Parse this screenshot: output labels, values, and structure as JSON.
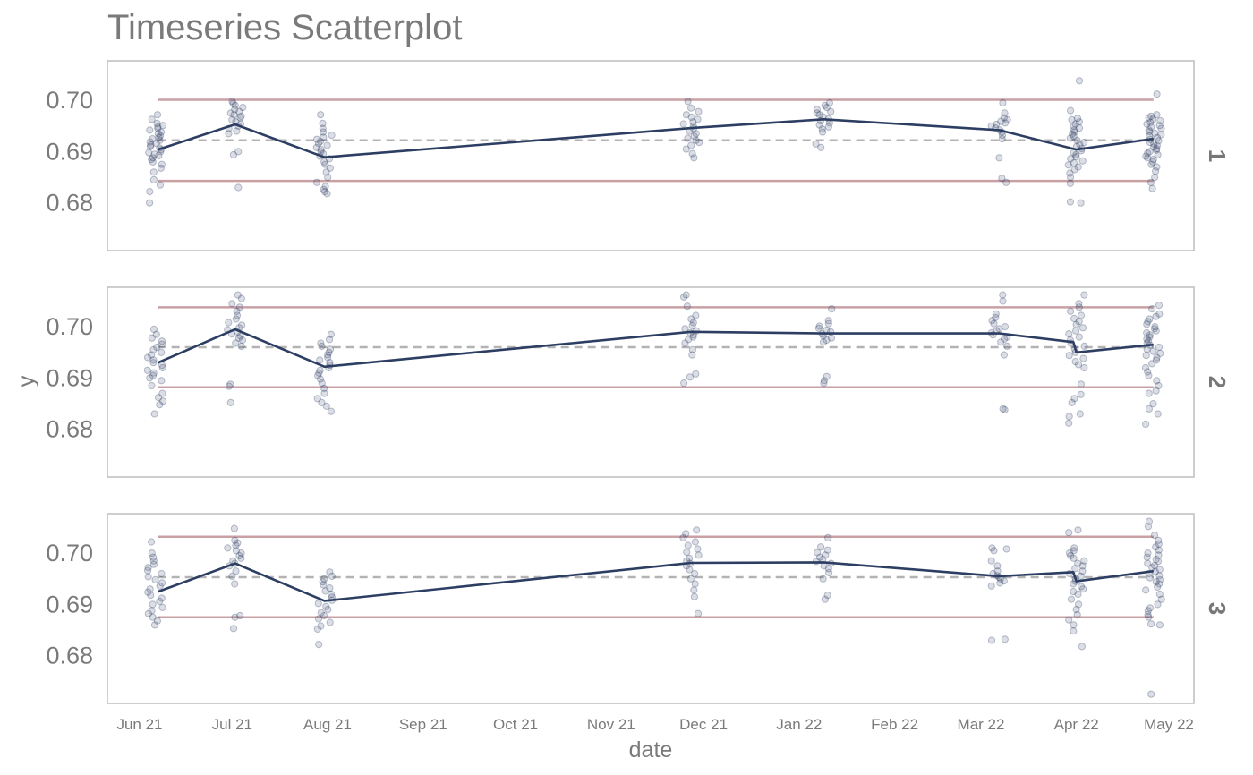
{
  "chart_data": {
    "type": "scatter",
    "title": "Timeseries Scatterplot",
    "xlabel": "date",
    "ylabel": "y",
    "x_tick_labels": [
      "Jun 21",
      "Jul 21",
      "Aug 21",
      "Sep 21",
      "Oct 21",
      "Nov 21",
      "Dec 21",
      "Jan 22",
      "Feb 22",
      "Mar 22",
      "Apr 22",
      "May 22"
    ],
    "x_tick_dates": [
      "2021-06-01",
      "2021-07-01",
      "2021-08-01",
      "2021-09-01",
      "2021-10-01",
      "2021-11-01",
      "2021-12-01",
      "2022-01-01",
      "2022-02-01",
      "2022-03-01",
      "2022-04-01",
      "2022-05-01"
    ],
    "x_range": [
      "2021-06-01",
      "2022-05-01"
    ],
    "y_tick_labels": [
      "0.70",
      "0.69",
      "0.68"
    ],
    "y_tick_values": [
      0.7,
      0.69,
      0.68
    ],
    "ylim": [
      0.6707,
      0.7077
    ],
    "grid": false,
    "colors": {
      "points": "#2d3e63",
      "mean_line": "#2d3e63",
      "limits": "#c9a0a4",
      "center": "#b3b3b3",
      "frame": "#bdbdbd",
      "text": "#7a7a7a"
    },
    "panels": [
      {
        "label": "1",
        "center": 0.6922,
        "upper_limit": 0.7001,
        "lower_limit": 0.6843,
        "span": [
          "2021-06-07",
          "2022-04-26"
        ],
        "mean_line": {
          "dates": [
            "2021-06-07",
            "2021-07-02",
            "2021-07-31",
            "2021-11-27",
            "2022-01-09",
            "2022-03-07",
            "2022-04-01",
            "2022-04-26"
          ],
          "values": [
            0.6904,
            0.6953,
            0.6889,
            0.6946,
            0.6963,
            0.6942,
            0.6904,
            0.6925
          ]
        },
        "clusters": [
          {
            "date": "2021-06-06",
            "values": [
              0.6972,
              0.6963,
              0.6955,
              0.6951,
              0.6948,
              0.6945,
              0.6942,
              0.6938,
              0.6935,
              0.6931,
              0.6928,
              0.6925,
              0.6922,
              0.6919,
              0.6916,
              0.6913,
              0.691,
              0.6907,
              0.6904,
              0.69,
              0.6898,
              0.6895,
              0.6892,
              0.6888,
              0.6885,
              0.688,
              0.6875,
              0.6868,
              0.686,
              0.6845,
              0.6835,
              0.6822,
              0.68
            ]
          },
          {
            "date": "2021-07-02",
            "values": [
              0.6998,
              0.6994,
              0.699,
              0.6986,
              0.6982,
              0.6978,
              0.6975,
              0.6972,
              0.6969,
              0.6966,
              0.6962,
              0.6958,
              0.6954,
              0.695,
              0.6945,
              0.694,
              0.6935,
              0.69,
              0.6894,
              0.683
            ]
          },
          {
            "date": "2021-07-31",
            "values": [
              0.6972,
              0.6955,
              0.6945,
              0.6938,
              0.6932,
              0.6928,
              0.6924,
              0.692,
              0.6916,
              0.6912,
              0.6908,
              0.6904,
              0.69,
              0.6896,
              0.6891,
              0.6886,
              0.688,
              0.6875,
              0.6868,
              0.686,
              0.685,
              0.684,
              0.6832,
              0.6826,
              0.6822,
              0.6818
            ]
          },
          {
            "date": "2021-11-27",
            "values": [
              0.6998,
              0.6985,
              0.6978,
              0.6972,
              0.6967,
              0.6963,
              0.6958,
              0.6954,
              0.695,
              0.6945,
              0.694,
              0.6935,
              0.693,
              0.6926,
              0.6922,
              0.6918,
              0.6912,
              0.6905,
              0.6896,
              0.6888
            ]
          },
          {
            "date": "2022-01-09",
            "values": [
              0.6995,
              0.699,
              0.6986,
              0.6982,
              0.6978,
              0.6975,
              0.6972,
              0.6968,
              0.6964,
              0.696,
              0.6956,
              0.6952,
              0.6948,
              0.6944,
              0.6938,
              0.6915,
              0.6908
            ]
          },
          {
            "date": "2022-03-07",
            "values": [
              0.6995,
              0.6975,
              0.6966,
              0.6962,
              0.6959,
              0.6956,
              0.6953,
              0.695,
              0.6946,
              0.6942,
              0.6938,
              0.6932,
              0.6925,
              0.6888,
              0.6848,
              0.684
            ]
          },
          {
            "date": "2022-04-01",
            "values": [
              0.7038,
              0.698,
              0.6965,
              0.6962,
              0.6958,
              0.6954,
              0.695,
              0.6946,
              0.6942,
              0.6938,
              0.6934,
              0.693,
              0.6926,
              0.6922,
              0.6918,
              0.6914,
              0.691,
              0.6906,
              0.6902,
              0.6898,
              0.6894,
              0.689,
              0.6886,
              0.6882,
              0.6878,
              0.6874,
              0.687,
              0.6865,
              0.6858,
              0.685,
              0.6838,
              0.6802,
              0.68
            ]
          },
          {
            "date": "2022-04-26",
            "values": [
              0.7012,
              0.6972,
              0.6969,
              0.6966,
              0.6963,
              0.696,
              0.6957,
              0.6954,
              0.6951,
              0.6948,
              0.6945,
              0.6942,
              0.6939,
              0.6936,
              0.6933,
              0.693,
              0.6927,
              0.6924,
              0.6921,
              0.6918,
              0.6915,
              0.6912,
              0.6909,
              0.6906,
              0.6903,
              0.69,
              0.6897,
              0.6894,
              0.6891,
              0.6888,
              0.6885,
              0.688,
              0.6875,
              0.687,
              0.6862,
              0.685,
              0.684,
              0.6828
            ]
          }
        ]
      },
      {
        "label": "2",
        "center": 0.696,
        "upper_limit": 0.7038,
        "lower_limit": 0.6882,
        "span": [
          "2021-06-07",
          "2022-04-26"
        ],
        "mean_line": {
          "dates": [
            "2021-06-07",
            "2021-07-02",
            "2021-07-31",
            "2021-11-27",
            "2022-01-09",
            "2022-03-07",
            "2022-03-31",
            "2022-04-01",
            "2022-04-26"
          ],
          "values": [
            0.693,
            0.6995,
            0.6922,
            0.699,
            0.6987,
            0.6987,
            0.697,
            0.695,
            0.6965
          ]
        },
        "clusters": [
          {
            "date": "2021-06-06",
            "values": [
              0.6995,
              0.6985,
              0.6978,
              0.6972,
              0.6966,
              0.696,
              0.6955,
              0.695,
              0.6945,
              0.694,
              0.6935,
              0.693,
              0.6925,
              0.692,
              0.6915,
              0.691,
              0.6905,
              0.69,
              0.6895,
              0.6885,
              0.687,
              0.6862,
              0.6855,
              0.6848,
              0.683
            ]
          },
          {
            "date": "2021-07-02",
            "values": [
              0.7062,
              0.7055,
              0.7045,
              0.7038,
              0.703,
              0.7022,
              0.7015,
              0.7008,
              0.7003,
              0.6998,
              0.6994,
              0.699,
              0.6986,
              0.6982,
              0.6978,
              0.6974,
              0.6968,
              0.6962,
              0.6888,
              0.6884,
              0.6852
            ]
          },
          {
            "date": "2021-07-31",
            "values": [
              0.6985,
              0.6975,
              0.6968,
              0.6962,
              0.6956,
              0.695,
              0.6945,
              0.694,
              0.6935,
              0.693,
              0.6925,
              0.692,
              0.6915,
              0.691,
              0.6905,
              0.6898,
              0.689,
              0.688,
              0.687,
              0.686,
              0.6852,
              0.6845,
              0.6835
            ]
          },
          {
            "date": "2021-11-27",
            "values": [
              0.7062,
              0.7058,
              0.704,
              0.7022,
              0.7015,
              0.7008,
              0.7002,
              0.6996,
              0.6992,
              0.6988,
              0.6984,
              0.698,
              0.6975,
              0.6968,
              0.6955,
              0.6945,
              0.6908,
              0.6902,
              0.689
            ]
          },
          {
            "date": "2022-01-09",
            "values": [
              0.7035,
              0.7012,
              0.7006,
              0.7001,
              0.6997,
              0.6993,
              0.699,
              0.6986,
              0.6982,
              0.6978,
              0.6974,
              0.697,
              0.6903,
              0.6895,
              0.689
            ]
          },
          {
            "date": "2022-03-07",
            "values": [
              0.7062,
              0.705,
              0.7025,
              0.7018,
              0.7012,
              0.7006,
              0.7,
              0.6996,
              0.6992,
              0.6988,
              0.6984,
              0.698,
              0.6976,
              0.697,
              0.6962,
              0.6945,
              0.684,
              0.6838
            ]
          },
          {
            "date": "2022-04-01",
            "values": [
              0.7062,
              0.7045,
              0.7038,
              0.703,
              0.7022,
              0.7016,
              0.701,
              0.7004,
              0.6998,
              0.6992,
              0.6986,
              0.698,
              0.6974,
              0.6968,
              0.6962,
              0.6956,
              0.695,
              0.6944,
              0.6938,
              0.6932,
              0.6926,
              0.692,
              0.6888,
              0.6868,
              0.686,
              0.6852,
              0.683,
              0.6825,
              0.6812
            ]
          },
          {
            "date": "2022-04-26",
            "values": [
              0.7042,
              0.7035,
              0.7025,
              0.702,
              0.7015,
              0.701,
              0.7005,
              0.7,
              0.6996,
              0.6992,
              0.6988,
              0.6984,
              0.698,
              0.6976,
              0.6972,
              0.6968,
              0.6964,
              0.696,
              0.6956,
              0.6952,
              0.6948,
              0.6944,
              0.694,
              0.6935,
              0.6928,
              0.692,
              0.6912,
              0.6905,
              0.6895,
              0.6885,
              0.6875,
              0.687,
              0.685,
              0.684,
              0.683,
              0.681
            ]
          }
        ]
      },
      {
        "label": "3",
        "center": 0.6953,
        "upper_limit": 0.7032,
        "lower_limit": 0.6875,
        "span": [
          "2021-06-07",
          "2022-04-26"
        ],
        "mean_line": {
          "dates": [
            "2021-06-07",
            "2021-07-02",
            "2021-07-31",
            "2021-11-27",
            "2022-01-09",
            "2022-03-07",
            "2022-03-31",
            "2022-04-01",
            "2022-04-26"
          ],
          "values": [
            0.6925,
            0.698,
            0.6907,
            0.6981,
            0.6982,
            0.6955,
            0.6963,
            0.6945,
            0.6965
          ]
        },
        "clusters": [
          {
            "date": "2021-06-06",
            "values": [
              0.7022,
              0.7,
              0.6992,
              0.6985,
              0.6978,
              0.6972,
              0.6966,
              0.696,
              0.6954,
              0.6948,
              0.6942,
              0.6936,
              0.693,
              0.6924,
              0.6918,
              0.6912,
              0.6906,
              0.69,
              0.6894,
              0.6888,
              0.6882,
              0.6875,
              0.6868,
              0.686
            ]
          },
          {
            "date": "2021-07-02",
            "values": [
              0.7048,
              0.7025,
              0.702,
              0.7015,
              0.701,
              0.7005,
              0.7,
              0.6995,
              0.699,
              0.6985,
              0.698,
              0.6975,
              0.6965,
              0.6955,
              0.694,
              0.6878,
              0.6875,
              0.6853
            ]
          },
          {
            "date": "2021-07-31",
            "values": [
              0.6963,
              0.6955,
              0.695,
              0.6944,
              0.6938,
              0.6932,
              0.6926,
              0.692,
              0.6914,
              0.6908,
              0.6902,
              0.6896,
              0.689,
              0.6884,
              0.6878,
              0.6872,
              0.6865,
              0.6858,
              0.6852,
              0.6822
            ]
          },
          {
            "date": "2021-11-27",
            "values": [
              0.7045,
              0.7038,
              0.703,
              0.7022,
              0.7015,
              0.7008,
              0.7002,
              0.6996,
              0.699,
              0.6985,
              0.698,
              0.6975,
              0.6968,
              0.696,
              0.695,
              0.694,
              0.6928,
              0.6915,
              0.6882
            ]
          },
          {
            "date": "2022-01-09",
            "values": [
              0.703,
              0.7012,
              0.7006,
              0.7001,
              0.6996,
              0.6992,
              0.6988,
              0.6984,
              0.698,
              0.6975,
              0.697,
              0.6962,
              0.695,
              0.6918,
              0.691
            ]
          },
          {
            "date": "2022-03-07",
            "values": [
              0.701,
              0.7008,
              0.7005,
              0.6985,
              0.6975,
              0.6965,
              0.696,
              0.6956,
              0.6953,
              0.695,
              0.6946,
              0.6942,
              0.6936,
              0.6832,
              0.683
            ]
          },
          {
            "date": "2022-04-01",
            "values": [
              0.7045,
              0.704,
              0.701,
              0.7005,
              0.7,
              0.6995,
              0.699,
              0.6985,
              0.698,
              0.6975,
              0.697,
              0.6965,
              0.696,
              0.6955,
              0.695,
              0.6945,
              0.694,
              0.6935,
              0.693,
              0.6925,
              0.692,
              0.691,
              0.69,
              0.689,
              0.688,
              0.687,
              0.686,
              0.6848,
              0.6818
            ]
          },
          {
            "date": "2022-04-26",
            "values": [
              0.7062,
              0.7052,
              0.7035,
              0.7025,
              0.7018,
              0.7012,
              0.7006,
              0.7,
              0.6996,
              0.6992,
              0.6988,
              0.6984,
              0.698,
              0.6976,
              0.6972,
              0.6968,
              0.6964,
              0.696,
              0.6956,
              0.6952,
              0.6948,
              0.6944,
              0.694,
              0.6934,
              0.6928,
              0.692,
              0.691,
              0.69,
              0.6893,
              0.6888,
              0.688,
              0.6875,
              0.6862,
              0.686,
              0.6725
            ]
          }
        ]
      }
    ]
  }
}
